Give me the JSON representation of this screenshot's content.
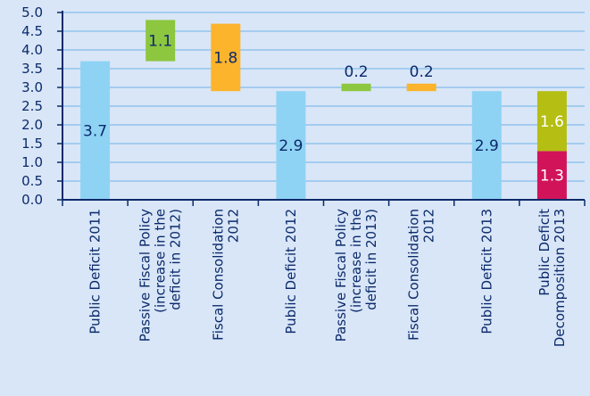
{
  "chart_data": {
    "type": "bar",
    "subtype": "waterfall",
    "ylim": [
      0,
      5
    ],
    "yticks": [
      "0.0",
      "0.5",
      "1.0",
      "1.5",
      "2.0",
      "2.5",
      "3.0",
      "3.5",
      "4.0",
      "4.5",
      "5.0"
    ],
    "grid": true,
    "categories": [
      [
        "Public Deficit 2011"
      ],
      [
        "Passive Fiscal Policy",
        "(increase in the",
        "deficit in 2012)"
      ],
      [
        "Fiscal Consolidation",
        "2012"
      ],
      [
        "Public Deficit 2012"
      ],
      [
        "Passive Fiscal Policy",
        "(increase in the",
        "deficit in 2013)"
      ],
      [
        "Fiscal Consolidation",
        "2012"
      ],
      [
        "Public Deficit 2013"
      ],
      [
        "Public Deficit",
        "Decomposition 2013"
      ]
    ],
    "bars": [
      {
        "base": 0,
        "value": 3.7,
        "label": "3.7",
        "color": "#8fd3f4"
      },
      {
        "base": 3.7,
        "value": 1.1,
        "label": "1.1",
        "color": "#8dc63f"
      },
      {
        "base": 2.9,
        "value": 1.8,
        "label": "1.8",
        "color": "#fbb42c"
      },
      {
        "base": 0,
        "value": 2.9,
        "label": "2.9",
        "color": "#8fd3f4"
      },
      {
        "base": 2.9,
        "value": 0.2,
        "label": "0.2",
        "color": "#8dc63f"
      },
      {
        "base": 2.9,
        "value": 0.2,
        "label": "0.2",
        "color": "#fbb42c"
      },
      {
        "base": 0,
        "value": 2.9,
        "label": "2.9",
        "color": "#8fd3f4"
      },
      {
        "base": 0,
        "value": 1.3,
        "label": "1.3",
        "color": "#d1145a"
      },
      {
        "base": 1.3,
        "value": 1.6,
        "label": "1.6",
        "color": "#b5be12"
      }
    ],
    "bar_category_index": [
      0,
      1,
      2,
      3,
      4,
      5,
      6,
      7,
      7
    ],
    "axis_color": "#0b2a6b",
    "grid_color": "#6fb2e8"
  }
}
